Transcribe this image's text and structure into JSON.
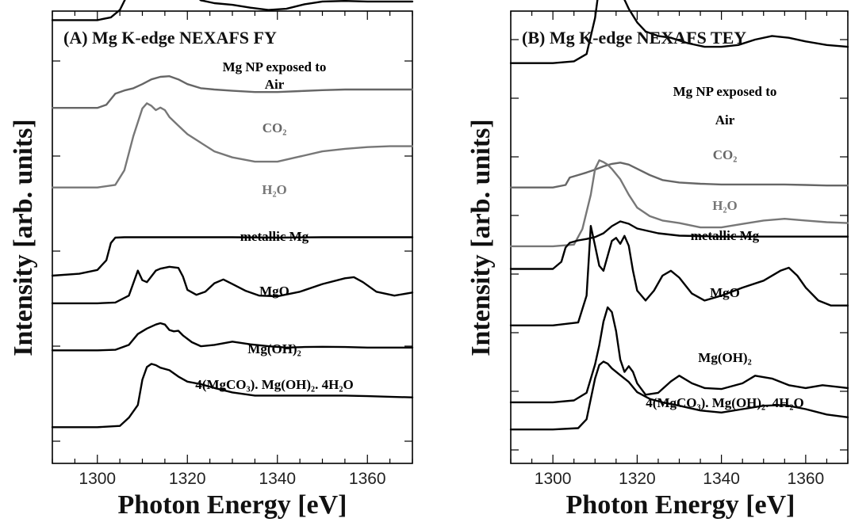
{
  "chart_data": [
    {
      "type": "line",
      "title": "(A)  Mg K-edge NEXAFS  FY",
      "xlabel": "Photon Energy [eV]",
      "ylabel": "Intensity [arb. units]",
      "xlim": [
        1290,
        1370
      ],
      "xticks": [
        "1300",
        "1320",
        "1340",
        "1360"
      ],
      "grid": false,
      "series": [
        {
          "name": "Mg NP exposed to Air",
          "label_lines": [
            "Mg NP exposed to",
            "Air"
          ],
          "color": "#000000",
          "offset": 0.02,
          "scale": 0.125,
          "x": [
            1290,
            1300,
            1303,
            1305,
            1307,
            1309,
            1311,
            1313,
            1315,
            1317,
            1319,
            1321,
            1323,
            1326,
            1330,
            1334,
            1338,
            1342,
            1346,
            1350,
            1355,
            1360,
            1365,
            1370
          ],
          "y": [
            0.0,
            0.0,
            0.05,
            0.18,
            0.5,
            0.82,
            0.95,
            1.0,
            0.98,
            0.88,
            0.68,
            0.48,
            0.35,
            0.3,
            0.27,
            0.22,
            0.18,
            0.2,
            0.28,
            0.33,
            0.34,
            0.33,
            0.33,
            0.33
          ]
        },
        {
          "name": "CO2",
          "label_lines": [
            "CO₂"
          ],
          "color": "#666666",
          "offset": 0.214,
          "scale": 0.07,
          "x": [
            1290,
            1300,
            1302,
            1304,
            1306,
            1308,
            1310,
            1312,
            1314,
            1316,
            1318,
            1320,
            1323,
            1326,
            1330,
            1335,
            1340,
            1345,
            1350,
            1355,
            1360,
            1365,
            1370
          ],
          "y": [
            0.0,
            0.0,
            0.1,
            0.45,
            0.55,
            0.62,
            0.75,
            0.9,
            0.98,
            1.0,
            0.9,
            0.75,
            0.62,
            0.58,
            0.54,
            0.5,
            0.5,
            0.53,
            0.56,
            0.58,
            0.58,
            0.58,
            0.58
          ]
        },
        {
          "name": "H2O",
          "label_lines": [
            "H₂O"
          ],
          "color": "#777777",
          "offset": 0.39,
          "scale": 0.19,
          "x": [
            1290,
            1300,
            1304,
            1306,
            1308,
            1310,
            1311,
            1312,
            1313,
            1314,
            1315,
            1316,
            1318,
            1320,
            1323,
            1326,
            1330,
            1335,
            1340,
            1345,
            1350,
            1355,
            1360,
            1365,
            1370
          ],
          "y": [
            0.0,
            0.0,
            0.03,
            0.2,
            0.6,
            0.92,
            0.98,
            0.95,
            0.9,
            0.93,
            0.9,
            0.82,
            0.72,
            0.62,
            0.52,
            0.42,
            0.35,
            0.3,
            0.3,
            0.36,
            0.42,
            0.45,
            0.47,
            0.48,
            0.48
          ]
        },
        {
          "name": "metallic Mg",
          "label_lines": [
            "metallic Mg"
          ],
          "color": "#000000",
          "offset": 0.585,
          "scale": 0.085,
          "x": [
            1290,
            1296,
            1300,
            1302,
            1303,
            1304,
            1306,
            1310,
            1320,
            1330,
            1340,
            1350,
            1360,
            1370
          ],
          "y": [
            0.0,
            0.05,
            0.15,
            0.4,
            0.85,
            0.99,
            1.0,
            1.0,
            1.0,
            1.0,
            0.99,
            1.0,
            1.0,
            1.0
          ]
        },
        {
          "name": "MgO",
          "label_lines": [
            "MgO"
          ],
          "color": "#000000",
          "offset": 0.646,
          "scale": 0.085,
          "x": [
            1290,
            1300,
            1304,
            1307,
            1309,
            1310,
            1311,
            1312,
            1313,
            1314,
            1316,
            1318,
            1319,
            1320,
            1322,
            1324,
            1326,
            1328,
            1330,
            1333,
            1336,
            1340,
            1345,
            1350,
            1355,
            1357,
            1359,
            1362,
            1366,
            1370
          ],
          "y": [
            0.0,
            0.0,
            0.02,
            0.2,
            0.85,
            0.6,
            0.55,
            0.7,
            0.85,
            0.9,
            0.95,
            0.92,
            0.7,
            0.35,
            0.22,
            0.3,
            0.52,
            0.62,
            0.5,
            0.32,
            0.2,
            0.18,
            0.3,
            0.5,
            0.65,
            0.68,
            0.55,
            0.3,
            0.2,
            0.28
          ]
        },
        {
          "name": "Mg(OH)2",
          "label_lines": [
            "Mg(OH)₂"
          ],
          "color": "#000000",
          "offset": 0.75,
          "scale": 0.06,
          "x": [
            1290,
            1300,
            1304,
            1307,
            1309,
            1311,
            1313,
            1314,
            1315,
            1316,
            1317,
            1318,
            1319,
            1321,
            1323,
            1326,
            1330,
            1334,
            1338,
            1342,
            1346,
            1350,
            1355,
            1360,
            1365,
            1370
          ],
          "y": [
            0.0,
            0.0,
            0.02,
            0.2,
            0.6,
            0.8,
            0.95,
            1.0,
            0.95,
            0.75,
            0.7,
            0.72,
            0.55,
            0.3,
            0.15,
            0.2,
            0.32,
            0.22,
            0.15,
            0.1,
            0.12,
            0.13,
            0.12,
            0.1,
            0.1,
            0.1
          ]
        },
        {
          "name": "4(MgCO3). Mg(OH)2. 4H2O",
          "label_lines": [
            "4(MgCO₃). Mg(OH)₂. 4H₂O"
          ],
          "color": "#000000",
          "offset": 0.92,
          "scale": 0.14,
          "x": [
            1290,
            1300,
            1305,
            1307,
            1309,
            1310,
            1311,
            1312,
            1313,
            1314,
            1316,
            1318,
            1320,
            1323,
            1326,
            1330,
            1335,
            1340,
            1345,
            1350,
            1355,
            1360,
            1365,
            1370
          ],
          "y": [
            0.0,
            0.0,
            0.02,
            0.15,
            0.35,
            0.75,
            0.95,
            1.0,
            0.98,
            0.94,
            0.9,
            0.8,
            0.72,
            0.68,
            0.62,
            0.55,
            0.5,
            0.5,
            0.5,
            0.5,
            0.5,
            0.49,
            0.48,
            0.47
          ]
        }
      ]
    },
    {
      "type": "line",
      "title": "(B)  Mg K-edge NEXAFS  TEY",
      "xlabel": "Photon Energy [eV]",
      "ylabel": "Intensity [arb. units]",
      "xlim": [
        1290,
        1370
      ],
      "xticks": [
        "1300",
        "1320",
        "1340",
        "1360"
      ],
      "grid": false,
      "series": [
        {
          "name": "Mg NP exposed to Air",
          "label_lines": [
            "Mg NP exposed to",
            "Air"
          ],
          "color": "#000000",
          "offset": 0.115,
          "scale": 0.2,
          "x": [
            1290,
            1300,
            1305,
            1308,
            1310,
            1311,
            1312,
            1313,
            1314,
            1316,
            1318,
            1320,
            1322,
            1325,
            1328,
            1332,
            1336,
            1340,
            1344,
            1348,
            1352,
            1356,
            1360,
            1365,
            1370
          ],
          "y": [
            0.0,
            0.0,
            0.02,
            0.1,
            0.5,
            0.85,
            1.0,
            0.98,
            0.92,
            0.8,
            0.6,
            0.45,
            0.35,
            0.3,
            0.28,
            0.22,
            0.18,
            0.18,
            0.2,
            0.26,
            0.3,
            0.28,
            0.24,
            0.2,
            0.18
          ]
        },
        {
          "name": "CO2",
          "label_lines": [
            "CO₂"
          ],
          "color": "#666666",
          "offset": 0.39,
          "scale": 0.055,
          "x": [
            1290,
            1300,
            1303,
            1304,
            1306,
            1308,
            1310,
            1312,
            1314,
            1316,
            1318,
            1320,
            1323,
            1326,
            1330,
            1335,
            1340,
            1345,
            1350,
            1355,
            1360,
            1365,
            1370
          ],
          "y": [
            0.0,
            0.0,
            0.1,
            0.4,
            0.5,
            0.6,
            0.72,
            0.85,
            0.95,
            1.0,
            0.92,
            0.75,
            0.5,
            0.3,
            0.2,
            0.15,
            0.12,
            0.12,
            0.12,
            0.12,
            0.1,
            0.08,
            0.08
          ]
        },
        {
          "name": "H2O",
          "label_lines": [
            "H₂O"
          ],
          "color": "#777777",
          "offset": 0.52,
          "scale": 0.19,
          "x": [
            1290,
            1300,
            1305,
            1307,
            1309,
            1310,
            1311,
            1312,
            1313,
            1314,
            1316,
            1318,
            1320,
            1323,
            1326,
            1330,
            1335,
            1340,
            1345,
            1350,
            1355,
            1360,
            1365,
            1370
          ],
          "y": [
            0.0,
            0.0,
            0.02,
            0.2,
            0.6,
            0.9,
            1.0,
            0.98,
            0.95,
            0.9,
            0.78,
            0.6,
            0.45,
            0.35,
            0.3,
            0.27,
            0.22,
            0.22,
            0.26,
            0.3,
            0.32,
            0.3,
            0.28,
            0.27
          ]
        },
        {
          "name": "metallic Mg",
          "label_lines": [
            "metallic Mg"
          ],
          "color": "#000000",
          "offset": 0.57,
          "scale": 0.105,
          "x": [
            1290,
            1300,
            1302,
            1303,
            1304,
            1306,
            1308,
            1310,
            1312,
            1314,
            1316,
            1318,
            1320,
            1325,
            1330,
            1340,
            1350,
            1360,
            1370
          ],
          "y": [
            0.0,
            0.0,
            0.15,
            0.45,
            0.55,
            0.6,
            0.63,
            0.67,
            0.75,
            0.9,
            1.0,
            0.95,
            0.85,
            0.75,
            0.7,
            0.68,
            0.68,
            0.68,
            0.68
          ]
        },
        {
          "name": "MgO",
          "label_lines": [
            "MgO"
          ],
          "color": "#000000",
          "offset": 0.695,
          "scale": 0.22,
          "x": [
            1290,
            1300,
            1306,
            1308,
            1309,
            1310,
            1311,
            1312,
            1313,
            1314,
            1315,
            1316,
            1317,
            1318,
            1319,
            1320,
            1322,
            1324,
            1326,
            1328,
            1330,
            1333,
            1336,
            1340,
            1345,
            1350,
            1354,
            1356,
            1358,
            1360,
            1363,
            1366,
            1370
          ],
          "y": [
            0.0,
            0.0,
            0.03,
            0.3,
            1.0,
            0.8,
            0.6,
            0.55,
            0.7,
            0.85,
            0.88,
            0.82,
            0.9,
            0.8,
            0.55,
            0.35,
            0.25,
            0.35,
            0.5,
            0.55,
            0.48,
            0.32,
            0.25,
            0.3,
            0.38,
            0.45,
            0.55,
            0.58,
            0.5,
            0.38,
            0.25,
            0.2,
            0.2
          ]
        },
        {
          "name": "Mg(OH)2",
          "label_lines": [
            "Mg(OH)₂"
          ],
          "color": "#000000",
          "offset": 0.865,
          "scale": 0.21,
          "x": [
            1290,
            1300,
            1305,
            1308,
            1310,
            1311,
            1312,
            1313,
            1314,
            1315,
            1316,
            1317,
            1318,
            1319,
            1320,
            1322,
            1325,
            1328,
            1330,
            1333,
            1336,
            1340,
            1345,
            1348,
            1352,
            1356,
            1360,
            1364,
            1368,
            1370
          ],
          "y": [
            0.0,
            0.0,
            0.02,
            0.1,
            0.4,
            0.6,
            0.85,
            1.0,
            0.95,
            0.75,
            0.45,
            0.32,
            0.38,
            0.32,
            0.2,
            0.08,
            0.1,
            0.22,
            0.28,
            0.2,
            0.15,
            0.14,
            0.2,
            0.28,
            0.25,
            0.18,
            0.15,
            0.18,
            0.16,
            0.15
          ]
        },
        {
          "name": "4(MgCO3). Mg(OH)2. 4H2O",
          "label_lines": [
            "4(MgCO₃). Mg(OH)₂. 4H₂O"
          ],
          "color": "#000000",
          "offset": 0.925,
          "scale": 0.15,
          "x": [
            1290,
            1300,
            1306,
            1308,
            1309,
            1310,
            1311,
            1312,
            1313,
            1314,
            1316,
            1318,
            1320,
            1323,
            1326,
            1330,
            1335,
            1340,
            1345,
            1350,
            1355,
            1360,
            1365,
            1370
          ],
          "y": [
            0.0,
            0.0,
            0.02,
            0.15,
            0.45,
            0.75,
            0.95,
            1.0,
            0.97,
            0.9,
            0.8,
            0.7,
            0.55,
            0.45,
            0.4,
            0.35,
            0.28,
            0.25,
            0.3,
            0.35,
            0.36,
            0.3,
            0.22,
            0.18
          ]
        }
      ]
    }
  ]
}
